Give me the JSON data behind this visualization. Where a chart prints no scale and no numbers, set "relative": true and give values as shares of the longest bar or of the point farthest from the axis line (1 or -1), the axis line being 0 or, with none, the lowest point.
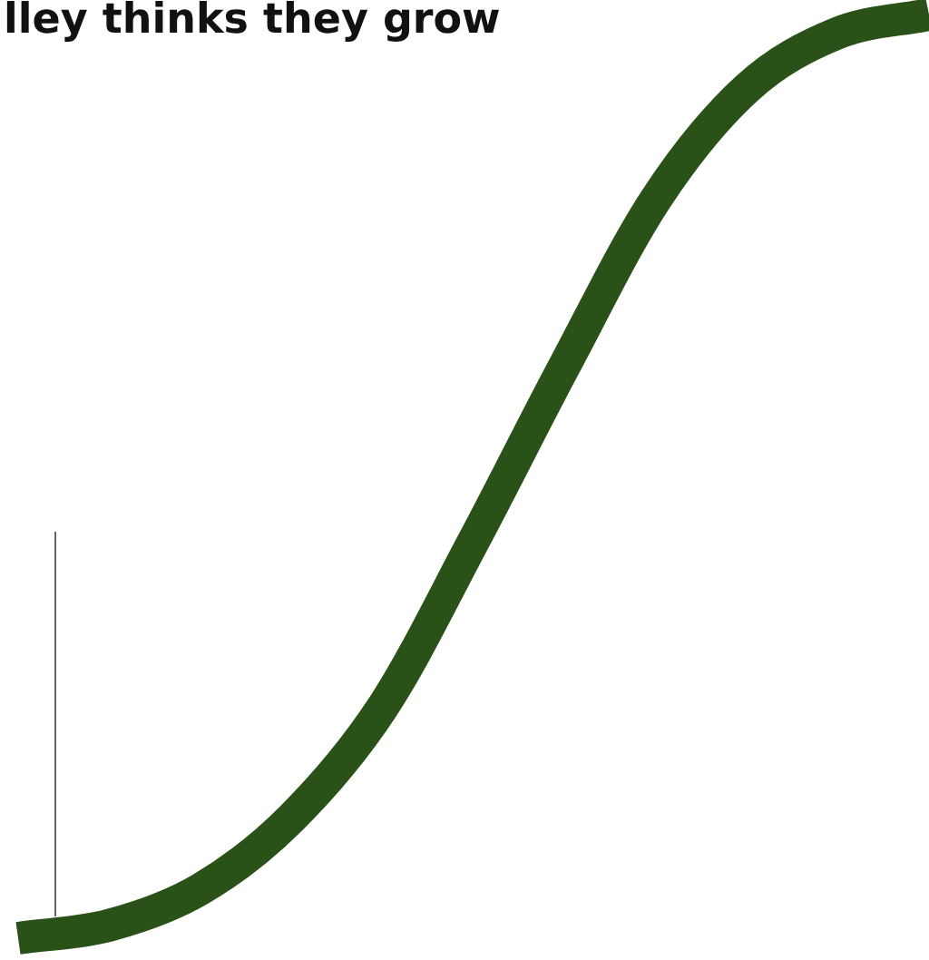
{
  "chart_data": {
    "type": "line",
    "title": "lley thinks they grow",
    "relative": true,
    "categories": [
      null,
      null,
      null,
      null,
      null,
      null,
      null,
      null,
      null,
      null,
      null
    ],
    "series": [
      {
        "color": "#2a5218",
        "values": [
          0,
          0.014,
          0.053,
          0.13,
          0.25,
          0.43,
          0.62,
          0.8,
          0.92,
          0.98,
          1
        ]
      }
    ],
    "legend": false,
    "marker": "none",
    "line_style": "solid"
  }
}
